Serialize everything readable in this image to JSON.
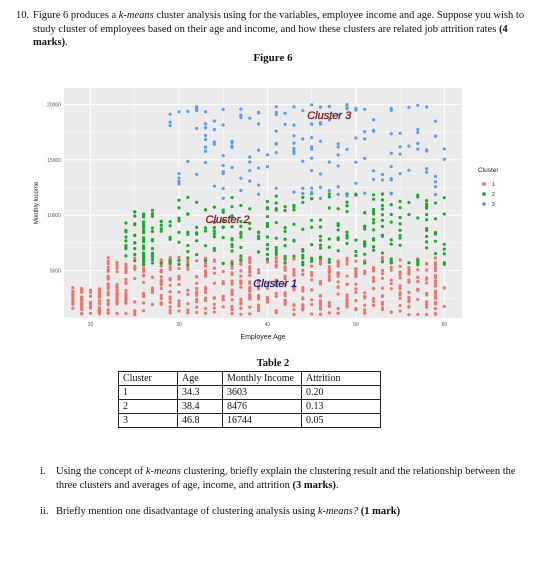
{
  "question": {
    "number": "10.",
    "text_pre": "Figure 6 produces a ",
    "kmeans_term": "k-means",
    "text_post": " cluster analysis using for the variables, employee income and age. Suppose you wish to study cluster of employees based on their age and income, and how these clusters are related job attrition rates ",
    "marks": "(4 marks)",
    "end": "."
  },
  "figure_title": "Figure 6",
  "colors": {
    "cluster1": "#f0746b",
    "cluster2": "#1aaa2c",
    "cluster3": "#5d9cf0",
    "panel_bg": "#ebebeb",
    "grid": "#ffffff"
  },
  "chart_data": {
    "type": "scatter",
    "xlabel": "Employee Age",
    "ylabel": "Monthly Income",
    "xlim": [
      17,
      62
    ],
    "ylim": [
      700,
      21500
    ],
    "x_ticks": [
      20,
      30,
      40,
      50,
      60
    ],
    "y_ticks": [
      5000,
      10000,
      15000,
      20000
    ],
    "y_tick_labels": [
      "5000",
      "10000",
      "15000",
      "20000"
    ],
    "grid": true,
    "legend_title": "Cluster",
    "legend_position": "right",
    "legend": [
      "1",
      "2",
      "3"
    ],
    "annotations": [
      "Cluster 3",
      "Cluster 2",
      "Cluster 1"
    ],
    "series": [
      {
        "name": "1",
        "x_range": [
          18,
          60
        ],
        "y_range": [
          1000,
          6200
        ]
      },
      {
        "name": "2",
        "x_range": [
          21,
          60
        ],
        "y_range": [
          5500,
          12000
        ]
      },
      {
        "name": "3",
        "x_range": [
          29,
          60
        ],
        "y_range": [
          11500,
          20000
        ]
      }
    ]
  },
  "table": {
    "title": "Table 2",
    "headers": [
      "Cluster",
      "Age",
      "Monthly Income",
      "Attrition"
    ],
    "rows": [
      [
        "1",
        "34.3",
        "3603",
        "0.20"
      ],
      [
        "2",
        "38.4",
        "8476",
        "0.13"
      ],
      [
        "3",
        "46.8",
        "16744",
        "0.05"
      ]
    ]
  },
  "subquestions": [
    {
      "label": "i.",
      "pre": "Using the concept of ",
      "term": "k-means",
      "mid": " clustering, briefly explain the clustering result and the relationship between the three clusters and averages of age, income, and attrition ",
      "marks": "(3 marks)",
      "end": "."
    },
    {
      "label": "ii.",
      "pre": "Briefly mention one disadvantage of clustering analysis using ",
      "term": "k-means?",
      "mid": " ",
      "marks": "(1 mark)",
      "end": ""
    }
  ]
}
